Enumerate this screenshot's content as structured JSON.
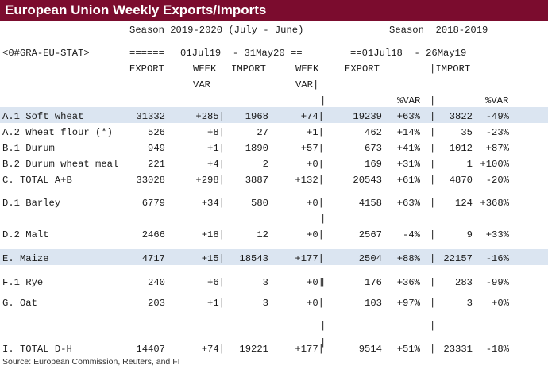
{
  "title": "European Union Weekly Exports/Imports",
  "colors": {
    "title_bg": "#7b0c2e",
    "highlight": "#dbe5f1"
  },
  "header": {
    "season_current": "Season 2019-2020 (July - June)",
    "season_prior": "Season  2018-2019",
    "ric": "<0#GRA-EU-STAT>",
    "sep": "======",
    "range_current": "01Jul19  - 31May20 ==",
    "range_prior": "==01Jul18  - 26May19",
    "col_export": "EXPORT",
    "col_week": "WEEK",
    "col_import": "IMPORT",
    "col_week2": "WEEK",
    "col_export2": "EXPORT",
    "col_import2": "|IMPORT",
    "var1": "VAR",
    "var2": "VAR|",
    "bar_left": "|",
    "pvar_export": "%VAR",
    "bar_mid": "|",
    "pvar_import": "%VAR"
  },
  "rows": [
    {
      "label": "A.1 Soft wheat",
      "exp": "31332",
      "wv": "+285|",
      "imp": "1968",
      "iv": "+74|",
      "exp2": "19239",
      "ev": "+63%",
      "imp2": "3822",
      "pv": "-49%",
      "bar": "|"
    },
    {
      "label": "A.2 Wheat flour (*)",
      "exp": "526",
      "wv": "+8|",
      "imp": "27",
      "iv": "+1|",
      "exp2": "462",
      "ev": "+14%",
      "imp2": "35",
      "pv": "-23%",
      "bar": "|"
    },
    {
      "label": "B.1 Durum",
      "exp": "949",
      "wv": "+1|",
      "imp": "1890",
      "iv": "+57|",
      "exp2": "673",
      "ev": "+41%",
      "imp2": "1012",
      "pv": "+87%",
      "bar": "|"
    },
    {
      "label": "B.2 Durum wheat meal",
      "exp": "221",
      "wv": "+4|",
      "imp": "2",
      "iv": "+0|",
      "exp2": "169",
      "ev": "+31%",
      "imp2": "1",
      "pv": "+100%",
      "bar": "|"
    },
    {
      "label": "C. TOTAL A+B",
      "exp": "33028",
      "wv": "+298|",
      "imp": "3887",
      "iv": "+132|",
      "exp2": "20543",
      "ev": "+61%",
      "imp2": "4870",
      "pv": "-20%",
      "bar": "|"
    },
    {
      "label": "D.1 Barley",
      "exp": "6779",
      "wv": "+34|",
      "imp": "580",
      "iv": "+0|",
      "exp2": "4158",
      "ev": "+63%",
      "imp2": "124",
      "pv": "+368%",
      "bar": "|"
    },
    {
      "label": "D.2 Malt",
      "exp": "2466",
      "wv": "+18|",
      "imp": "12",
      "iv": "+0|",
      "exp2": "2567",
      "ev": "-4%",
      "imp2": "9",
      "pv": "+33%",
      "bar": "|"
    },
    {
      "label": "E. Maize",
      "exp": "4717",
      "wv": "+15|",
      "imp": "18543",
      "iv": "+177|",
      "exp2": "2504",
      "ev": "+88%",
      "imp2": "22157",
      "pv": "-16%",
      "bar": "|"
    },
    {
      "label": "F.1 Rye",
      "exp": "240",
      "wv": "+6|",
      "imp": "3",
      "iv": "+0|",
      "exp2": "176",
      "ev": "+36%",
      "imp2": "283",
      "pv": "-99%",
      "bar": "|"
    },
    {
      "label": "G. Oat",
      "exp": "203",
      "wv": "+1|",
      "imp": "3",
      "iv": "+0|",
      "exp2": "103",
      "ev": "+97%",
      "imp2": "3",
      "pv": "+0%",
      "bar": "|"
    },
    {
      "label": "I. TOTAL D-H",
      "exp": "14407",
      "wv": "+74|",
      "imp": "19221",
      "iv": "+177|",
      "exp2": "9514",
      "ev": "+51%",
      "imp2": "23331",
      "pv": "-18%",
      "bar": "|"
    }
  ],
  "spacer_bars": [
    "|",
    "|",
    "|",
    "|",
    "|"
  ],
  "source": "Source: European Commission, Reuters, and FI"
}
